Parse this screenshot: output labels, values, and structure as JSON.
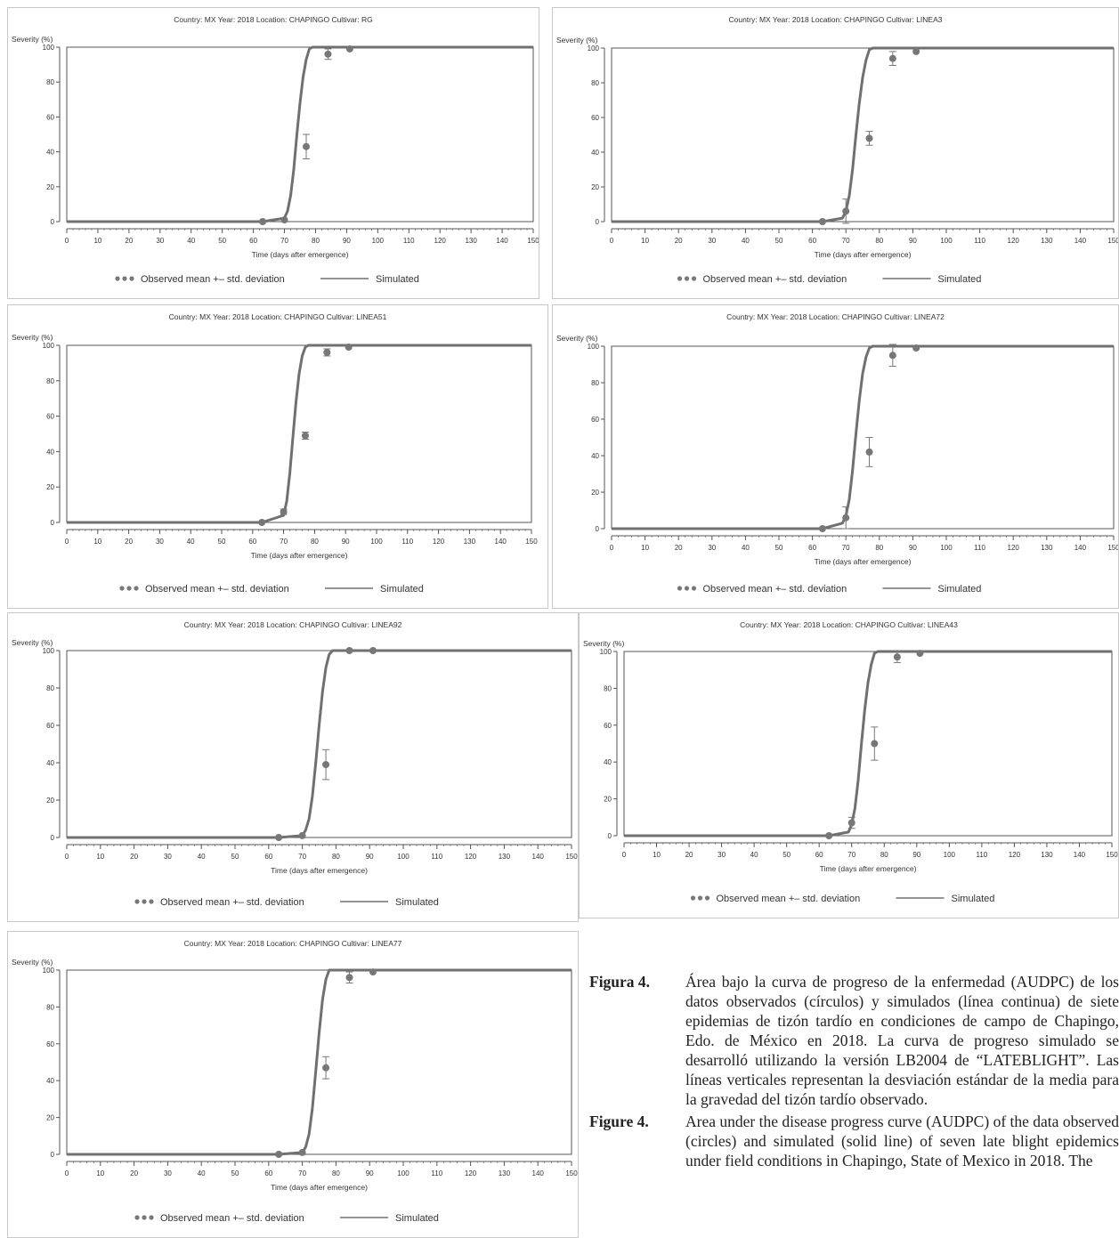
{
  "chart_data": [
    {
      "type": "line",
      "title": "Country: MX     Year: 2018     Location: CHAPINGO     Cultivar: RG",
      "xlabel": "Time (days after emergence)",
      "ylabel": "Severity (%)",
      "xlim": [
        0,
        150
      ],
      "ylim": [
        0,
        100
      ],
      "xticks": [
        0,
        10,
        20,
        30,
        40,
        50,
        60,
        70,
        80,
        90,
        100,
        110,
        120,
        130,
        140,
        150
      ],
      "yticks": [
        0,
        20,
        40,
        60,
        80,
        100
      ],
      "legend": {
        "observed": "Observed mean +– std. deviation",
        "simulated": "Simulated",
        "position": "bottom"
      },
      "series": [
        {
          "name": "Observed mean +– std. deviation",
          "type": "scatter",
          "x": [
            63,
            70,
            77,
            84,
            91
          ],
          "y": [
            0,
            1,
            43,
            96,
            99
          ],
          "sd": [
            0.5,
            1,
            7,
            3,
            0.5
          ]
        },
        {
          "name": "Simulated",
          "type": "line",
          "x": [
            0,
            63,
            70,
            71,
            72,
            73,
            74,
            75,
            76,
            77,
            78,
            79,
            150
          ],
          "y": [
            0,
            0,
            2,
            6,
            15,
            30,
            50,
            68,
            83,
            93,
            99,
            100,
            100
          ]
        }
      ]
    },
    {
      "type": "line",
      "title": "Country: MX     Year: 2018     Location: CHAPINGO     Cultivar: LINEA3",
      "xlabel": "Time (days after emergence)",
      "ylabel": "Severity (%)",
      "xlim": [
        0,
        150
      ],
      "ylim": [
        0,
        100
      ],
      "xticks": [
        0,
        10,
        20,
        30,
        40,
        50,
        60,
        70,
        80,
        90,
        100,
        110,
        120,
        130,
        140,
        150
      ],
      "yticks": [
        0,
        20,
        40,
        60,
        80,
        100
      ],
      "legend": {
        "observed": "Observed mean +– std. deviation",
        "simulated": "Simulated",
        "position": "bottom"
      },
      "series": [
        {
          "name": "Observed mean +– std. deviation",
          "type": "scatter",
          "x": [
            63,
            70,
            77,
            84,
            91
          ],
          "y": [
            0,
            6,
            48,
            94,
            98
          ],
          "sd": [
            0.5,
            7,
            4,
            4,
            1
          ]
        },
        {
          "name": "Simulated",
          "type": "line",
          "x": [
            0,
            63,
            69,
            70,
            71,
            72,
            73,
            74,
            75,
            76,
            77,
            78,
            150
          ],
          "y": [
            0,
            0,
            2,
            6,
            15,
            30,
            50,
            68,
            83,
            93,
            99,
            100,
            100
          ]
        }
      ]
    },
    {
      "type": "line",
      "title": "Country: MX     Year: 2018     Location: CHAPINGO     Cultivar: LINEA51",
      "xlabel": "Time (days after emergence)",
      "ylabel": "Severity (%)",
      "xlim": [
        0,
        150
      ],
      "ylim": [
        0,
        100
      ],
      "xticks": [
        0,
        10,
        20,
        30,
        40,
        50,
        60,
        70,
        80,
        90,
        100,
        110,
        120,
        130,
        140,
        150
      ],
      "yticks": [
        0,
        20,
        40,
        60,
        80,
        100
      ],
      "legend": {
        "observed": "Observed mean +– std. deviation",
        "simulated": "Simulated",
        "position": "bottom"
      },
      "series": [
        {
          "name": "Observed mean +– std. deviation",
          "type": "scatter",
          "x": [
            63,
            70,
            77,
            84,
            91
          ],
          "y": [
            0,
            6,
            49,
            96,
            99
          ],
          "sd": [
            0.5,
            1.5,
            2,
            2,
            0.5
          ]
        },
        {
          "name": "Simulated",
          "type": "line",
          "x": [
            0,
            63,
            70,
            71,
            72,
            73,
            74,
            75,
            76,
            77,
            78,
            150
          ],
          "y": [
            0,
            0,
            4,
            12,
            28,
            48,
            68,
            84,
            94,
            99,
            100,
            100
          ]
        }
      ]
    },
    {
      "type": "line",
      "title": "Country: MX     Year: 2018     Location: CHAPINGO     Cultivar: LINEA72",
      "xlabel": "Time (days after emergence)",
      "ylabel": "Severity (%)",
      "xlim": [
        0,
        150
      ],
      "ylim": [
        0,
        100
      ],
      "xticks": [
        0,
        10,
        20,
        30,
        40,
        50,
        60,
        70,
        80,
        90,
        100,
        110,
        120,
        130,
        140,
        150
      ],
      "yticks": [
        0,
        20,
        40,
        60,
        80,
        100
      ],
      "legend": {
        "observed": "Observed mean +– std. deviation",
        "simulated": "Simulated",
        "position": "bottom"
      },
      "series": [
        {
          "name": "Observed mean +– std. deviation",
          "type": "scatter",
          "x": [
            63,
            70,
            77,
            84,
            91
          ],
          "y": [
            0,
            6,
            42,
            95,
            99
          ],
          "sd": [
            0.5,
            6,
            8,
            6,
            1
          ]
        },
        {
          "name": "Simulated",
          "type": "line",
          "x": [
            0,
            63,
            69,
            70,
            71,
            72,
            73,
            74,
            75,
            76,
            77,
            78,
            150
          ],
          "y": [
            0,
            0,
            3,
            7,
            16,
            32,
            52,
            70,
            85,
            94,
            99,
            100,
            100
          ]
        }
      ]
    },
    {
      "type": "line",
      "title": "Country: MX     Year: 2018     Location: CHAPINGO     Cultivar: LINEA92",
      "xlabel": "Time (days after emergence)",
      "ylabel": "Severity (%)",
      "xlim": [
        0,
        150
      ],
      "ylim": [
        0,
        100
      ],
      "xticks": [
        0,
        10,
        20,
        30,
        40,
        50,
        60,
        70,
        80,
        90,
        100,
        110,
        120,
        130,
        140,
        150
      ],
      "yticks": [
        0,
        20,
        40,
        60,
        80,
        100
      ],
      "legend": {
        "observed": "Observed mean +– std. deviation",
        "simulated": "Simulated",
        "position": "bottom"
      },
      "series": [
        {
          "name": "Observed mean +– std. deviation",
          "type": "scatter",
          "x": [
            63,
            70,
            77,
            84,
            91
          ],
          "y": [
            0,
            1,
            39,
            100,
            100
          ],
          "sd": [
            0.5,
            1,
            8,
            0.5,
            0.5
          ]
        },
        {
          "name": "Simulated",
          "type": "line",
          "x": [
            0,
            63,
            70,
            71,
            72,
            73,
            74,
            75,
            76,
            77,
            78,
            79,
            150
          ],
          "y": [
            0,
            0,
            1,
            4,
            10,
            22,
            40,
            60,
            78,
            91,
            98,
            100,
            100
          ]
        }
      ]
    },
    {
      "type": "line",
      "title": "Country: MX     Year: 2018     Location: CHAPINGO     Cultivar: LINEA43",
      "xlabel": "Time (days after emergence)",
      "ylabel": "Severity (%)",
      "xlim": [
        0,
        150
      ],
      "ylim": [
        0,
        100
      ],
      "xticks": [
        0,
        10,
        20,
        30,
        40,
        50,
        60,
        70,
        80,
        90,
        100,
        110,
        120,
        130,
        140,
        150
      ],
      "yticks": [
        0,
        20,
        40,
        60,
        80,
        100
      ],
      "legend": {
        "observed": "Observed mean +– std. deviation",
        "simulated": "Simulated",
        "position": "bottom"
      },
      "series": [
        {
          "name": "Observed mean +– std. deviation",
          "type": "scatter",
          "x": [
            63,
            70,
            77,
            84,
            91
          ],
          "y": [
            0,
            7,
            50,
            97,
            99
          ],
          "sd": [
            0.5,
            3,
            9,
            3,
            1
          ]
        },
        {
          "name": "Simulated",
          "type": "line",
          "x": [
            0,
            63,
            69,
            70,
            71,
            72,
            73,
            74,
            75,
            76,
            77,
            78,
            150
          ],
          "y": [
            0,
            0,
            2,
            6,
            15,
            30,
            50,
            68,
            83,
            93,
            99,
            100,
            100
          ]
        }
      ]
    },
    {
      "type": "line",
      "title": "Country: MX     Year: 2018     Location: CHAPINGO     Cultivar: LINEA77",
      "xlabel": "Time (days after emergence)",
      "ylabel": "Severity (%)",
      "xlim": [
        0,
        150
      ],
      "ylim": [
        0,
        100
      ],
      "xticks": [
        0,
        10,
        20,
        30,
        40,
        50,
        60,
        70,
        80,
        90,
        100,
        110,
        120,
        130,
        140,
        150
      ],
      "yticks": [
        0,
        20,
        40,
        60,
        80,
        100
      ],
      "legend": {
        "observed": "Observed mean +– std. deviation",
        "simulated": "Simulated",
        "position": "bottom"
      },
      "series": [
        {
          "name": "Observed mean +– std. deviation",
          "type": "scatter",
          "x": [
            63,
            70,
            77,
            84,
            91
          ],
          "y": [
            0,
            1,
            47,
            96,
            99
          ],
          "sd": [
            0.5,
            1,
            6,
            3,
            0.5
          ]
        },
        {
          "name": "Simulated",
          "type": "line",
          "x": [
            0,
            63,
            70,
            71,
            72,
            73,
            74,
            75,
            76,
            77,
            78,
            150
          ],
          "y": [
            0,
            0,
            1,
            4,
            11,
            25,
            45,
            66,
            84,
            95,
            100,
            100
          ]
        }
      ]
    }
  ],
  "caption": {
    "es_label": "Figura 4.",
    "es_text": "Área bajo la curva de progreso de la enfermedad (AUDPC) de los datos observados (círculos) y simulados (línea continua) de siete epidemias de tizón tardío en condiciones de campo de Chapingo, Edo. de México en 2018. La curva de progreso simulado se desarrolló utilizando la versión LB2004 de “LATEBLIGHT”. Las líneas verticales representan la desviación estándar de la media para la gravedad del tizón tardío observado.",
    "en_label": "Figure 4.",
    "en_text": "Area under the disease progress curve (AUDPC) of the data observed (circles) and simulated (solid line) of seven late blight epidemics under field conditions in Chapingo, State of Mexico in 2018. The"
  },
  "colors": {
    "curve": "#707070",
    "marker": "#777777",
    "axis": "#555555",
    "text": "#333333"
  }
}
